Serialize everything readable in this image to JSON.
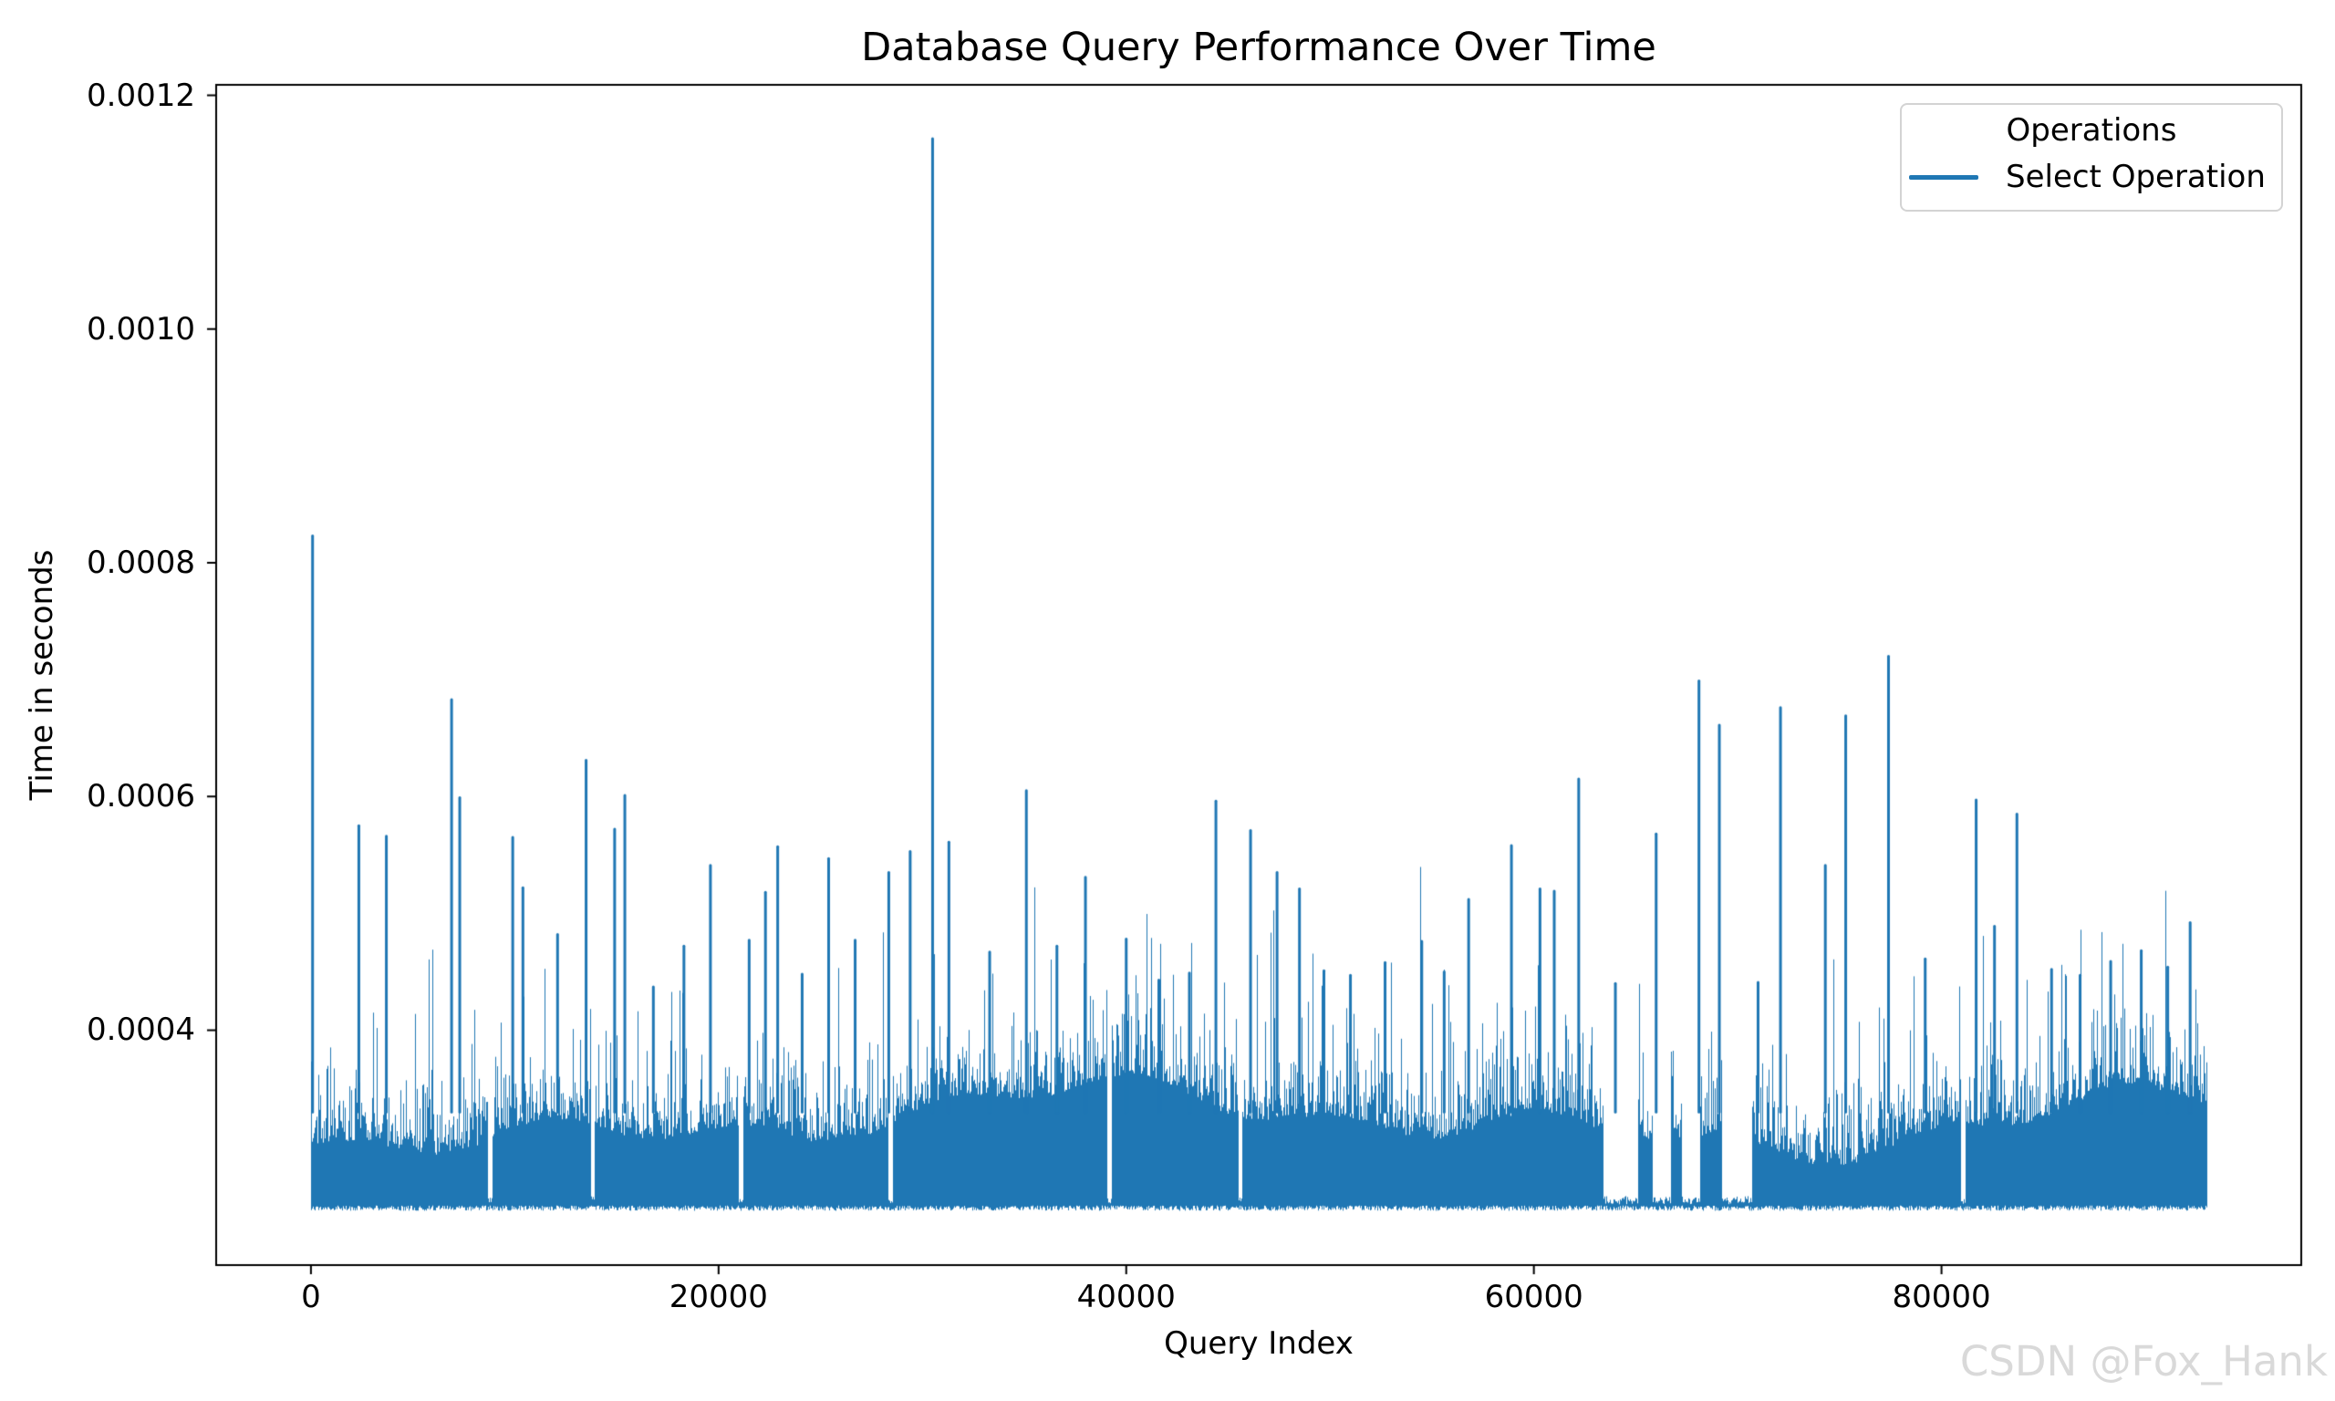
{
  "title": "Database Query Performance Over Time",
  "axes": {
    "xlabel": "Query Index",
    "ylabel": "Time in seconds"
  },
  "legend": {
    "title": "Operations",
    "entries": [
      {
        "label": "Select Operation",
        "color": "#1f77b4"
      }
    ]
  },
  "watermark": {
    "text": "CSDN @Fox_Hank",
    "color": "#d9d9d9"
  },
  "colors": {
    "line": "#1f77b4",
    "axes": "#000000",
    "background": "#ffffff",
    "legend_border": "#d3d3d3",
    "watermark": "#d9d9d9"
  },
  "chart_data": {
    "type": "line",
    "title": "Database Query Performance Over Time",
    "xlabel": "Query Index",
    "ylabel": "Time in seconds",
    "grid": false,
    "legend_position": "upper right",
    "series": [
      {
        "name": "Select Operation",
        "color": "#1f77b4"
      }
    ],
    "x_range": [
      0,
      93000
    ],
    "xlim": [
      -4650,
      97650
    ],
    "ylim": [
      0.000199,
      0.001209
    ],
    "x_ticks": {
      "values": [
        0,
        20000,
        40000,
        60000,
        80000
      ],
      "labels": [
        "0",
        "20000",
        "40000",
        "60000",
        "80000"
      ]
    },
    "y_ticks": {
      "values": [
        0.0004,
        0.0006,
        0.0008,
        0.001,
        0.0012
      ],
      "labels": [
        "0.0004",
        "0.0006",
        "0.0008",
        "0.0010",
        "0.0012"
      ]
    },
    "baseline_band": {
      "min": 0.000245,
      "typical_top": 0.0004,
      "note": "dense noise band of ~93000 select-query times oscillating between ~0.000245 s and ~0.0004 s"
    },
    "band_gaps": [
      [
        8650,
        8900
      ],
      [
        13700,
        13900
      ],
      [
        20950,
        21200
      ],
      [
        28300,
        28520
      ],
      [
        39050,
        39280
      ],
      [
        45480,
        45650
      ],
      [
        63400,
        65100
      ],
      [
        65800,
        66700
      ],
      [
        67250,
        68150
      ],
      [
        69200,
        70700
      ],
      [
        80950,
        81150
      ]
    ],
    "major_spikes": [
      [
        80,
        0.000823
      ],
      [
        2350,
        0.000575
      ],
      [
        3700,
        0.000566
      ],
      [
        6900,
        0.000683
      ],
      [
        7300,
        0.000599
      ],
      [
        9900,
        0.000565
      ],
      [
        10400,
        0.000522
      ],
      [
        12100,
        0.000482
      ],
      [
        13500,
        0.000631
      ],
      [
        14900,
        0.000572
      ],
      [
        15400,
        0.000601
      ],
      [
        16800,
        0.000437
      ],
      [
        18300,
        0.000472
      ],
      [
        19600,
        0.000541
      ],
      [
        21500,
        0.000477
      ],
      [
        22300,
        0.000518
      ],
      [
        22900,
        0.000557
      ],
      [
        24100,
        0.000448
      ],
      [
        25400,
        0.000547
      ],
      [
        26700,
        0.000477
      ],
      [
        28350,
        0.000535
      ],
      [
        29400,
        0.000553
      ],
      [
        30500,
        0.001163
      ],
      [
        31300,
        0.000561
      ],
      [
        33300,
        0.000467
      ],
      [
        35100,
        0.000605
      ],
      [
        36600,
        0.000472
      ],
      [
        38000,
        0.000531
      ],
      [
        40000,
        0.000478
      ],
      [
        41600,
        0.000443
      ],
      [
        43100,
        0.000449
      ],
      [
        44400,
        0.000596
      ],
      [
        46100,
        0.000571
      ],
      [
        47400,
        0.000535
      ],
      [
        48500,
        0.000521
      ],
      [
        49700,
        0.000451
      ],
      [
        51000,
        0.000447
      ],
      [
        52700,
        0.000458
      ],
      [
        54500,
        0.000476
      ],
      [
        55600,
        0.00045
      ],
      [
        56800,
        0.000512
      ],
      [
        58900,
        0.000558
      ],
      [
        60300,
        0.000521
      ],
      [
        61000,
        0.000519
      ],
      [
        62200,
        0.000615
      ],
      [
        64000,
        0.00044
      ],
      [
        66000,
        0.000568
      ],
      [
        68100,
        0.000699
      ],
      [
        69100,
        0.000661
      ],
      [
        71000,
        0.000441
      ],
      [
        72100,
        0.000676
      ],
      [
        74300,
        0.000541
      ],
      [
        75300,
        0.000669
      ],
      [
        77400,
        0.00072
      ],
      [
        79200,
        0.000461
      ],
      [
        81700,
        0.000597
      ],
      [
        82600,
        0.000489
      ],
      [
        83700,
        0.000585
      ],
      [
        85400,
        0.000452
      ],
      [
        86800,
        0.000447
      ],
      [
        88300,
        0.000459
      ],
      [
        89800,
        0.000468
      ],
      [
        91100,
        0.000454
      ],
      [
        92200,
        0.000492
      ]
    ]
  }
}
